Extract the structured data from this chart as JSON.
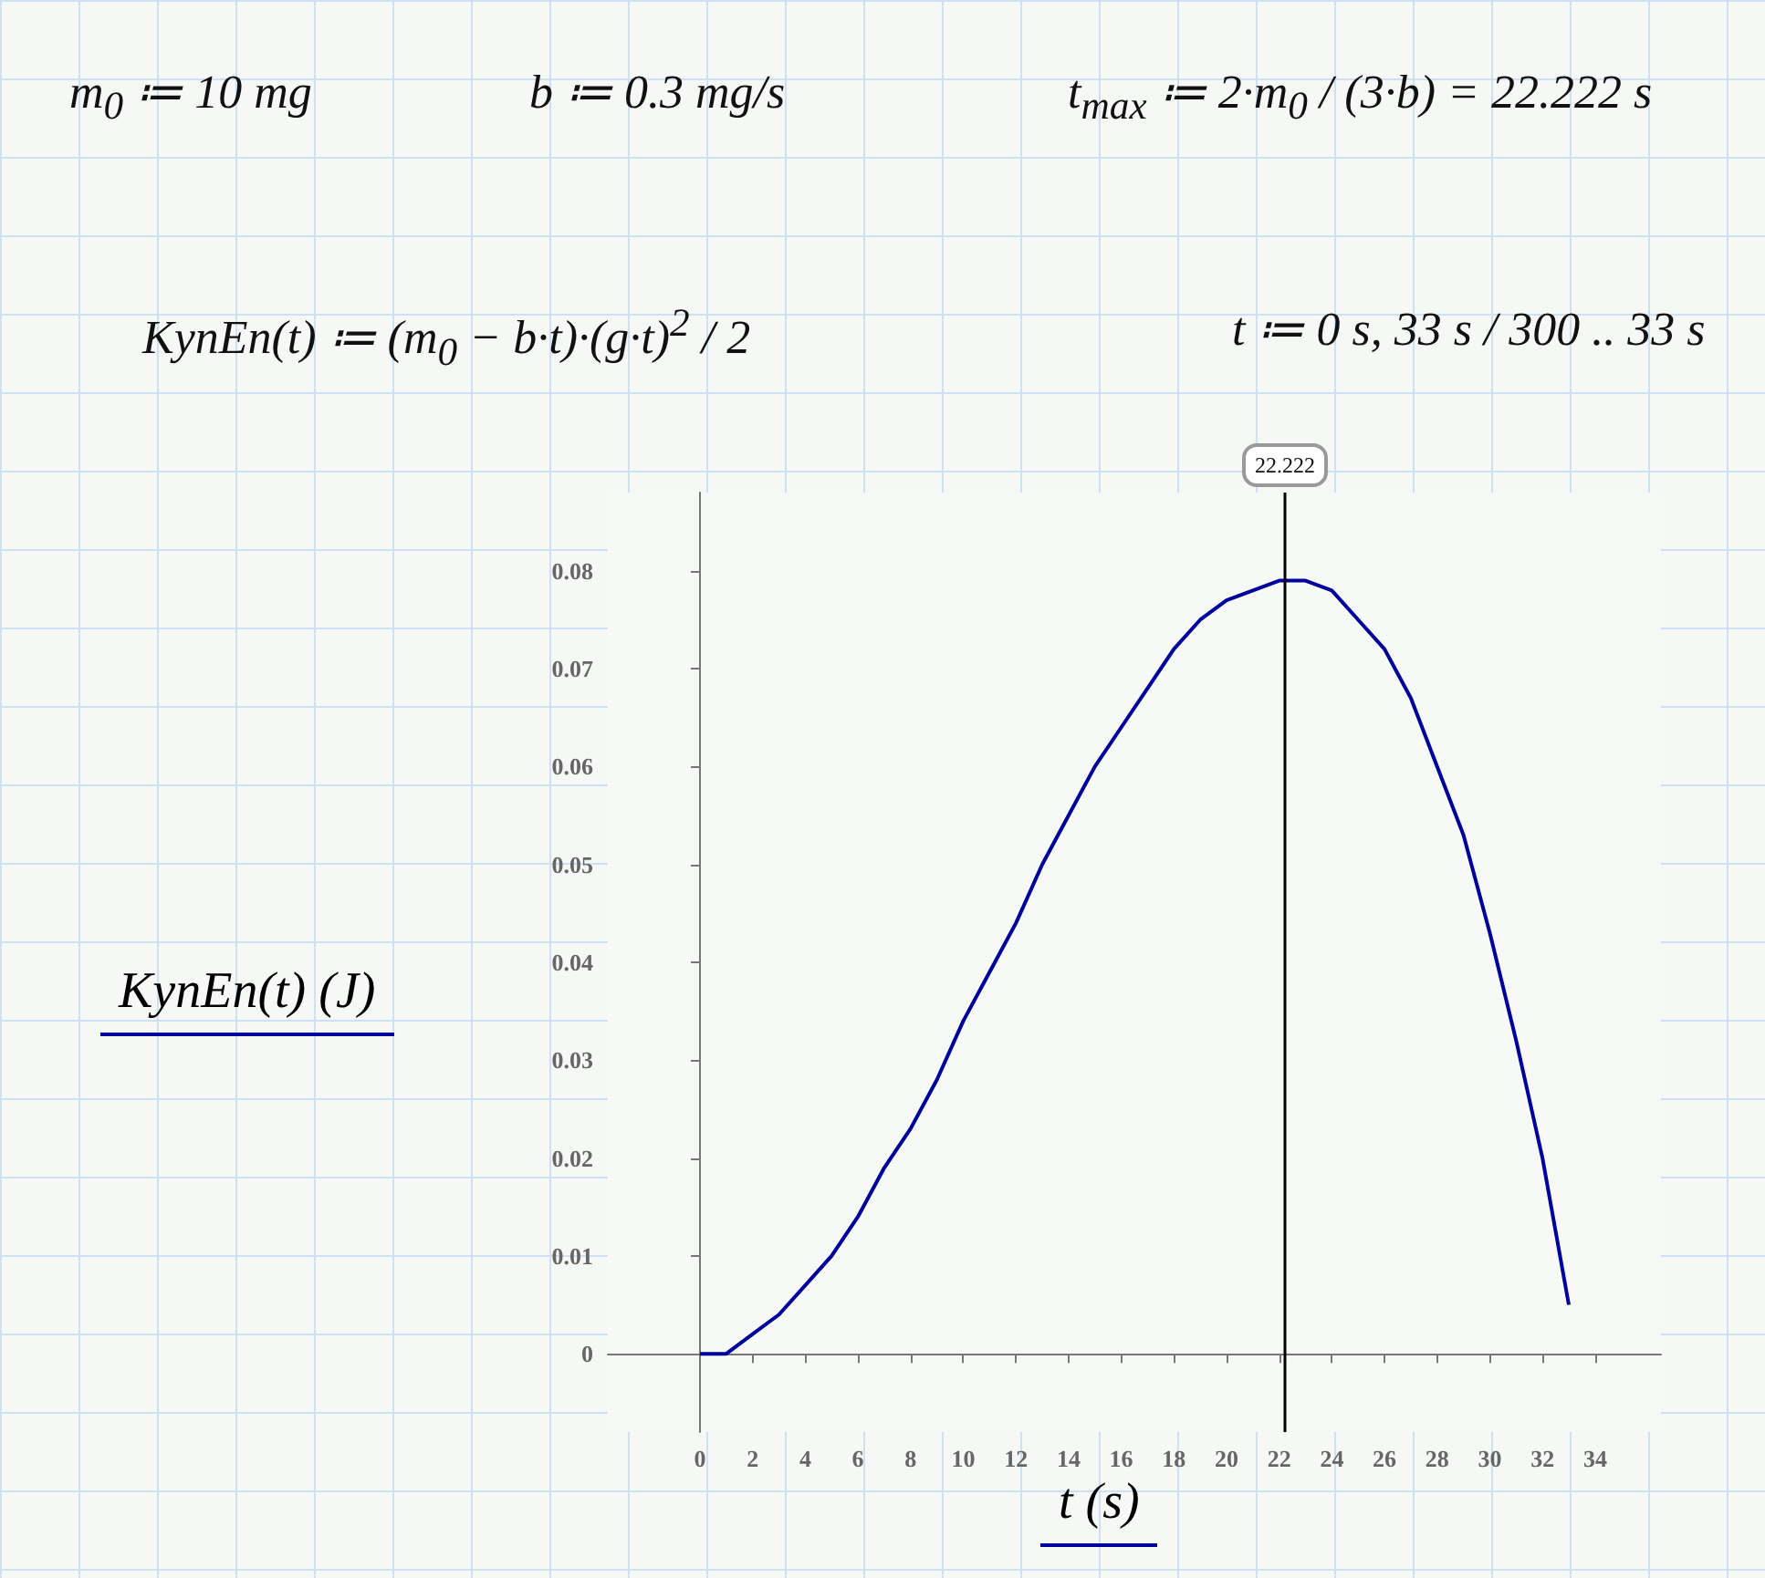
{
  "chart_data": {
    "type": "line",
    "xlabel": "t  (s)",
    "ylabel": "KynEn(t)  (J)",
    "annotations": [
      "m$_{0}$ ≔ 10 mg",
      "b ≔ 0.3 mg/s",
      "t$_{max}$ ≔ 2·m$_{0}$ / (3·b) = 22.222 s",
      "KynEn(t) ≔ (m$_{0}$ − b·t)·(g·t)$^{2}$ / 2",
      "t ≔ 0 s, 33 s / 300 .. 33 s"
    ],
    "x": [
      0,
      1,
      2,
      3,
      4,
      5,
      6,
      7,
      8,
      9,
      10,
      11,
      12,
      13,
      14,
      15,
      16,
      17,
      18,
      19,
      20,
      21,
      22,
      23,
      24,
      25,
      26,
      27,
      28,
      29,
      30,
      31,
      32,
      33
    ],
    "series": [
      {
        "color": "#00009c",
        "values": [
          0,
          0.0,
          0.002,
          0.004,
          0.007,
          0.01,
          0.014,
          0.019,
          0.023,
          0.028,
          0.034,
          0.039,
          0.044,
          0.05,
          0.055,
          0.06,
          0.064,
          0.068,
          0.072,
          0.075,
          0.077,
          0.078,
          0.079,
          0.079,
          0.078,
          0.075,
          0.072,
          0.067,
          0.06,
          0.053,
          0.043,
          0.032,
          0.02,
          0.005
        ]
      }
    ],
    "xlim": [
      -3.5,
      36.5
    ],
    "xticks": [
      0,
      2,
      4,
      6,
      8,
      10,
      12,
      14,
      16,
      18,
      20,
      22,
      24,
      26,
      28,
      30,
      32,
      34
    ],
    "ylim": [
      -0.008,
      0.088
    ],
    "yticks": [
      0,
      0.01,
      0.02,
      0.03,
      0.04,
      0.05,
      0.06,
      0.07,
      0.08
    ],
    "ref_lines": [
      {
        "axis": "x",
        "value": 22.222,
        "label": "22.222",
        "color": "#000000"
      }
    ],
    "marker": "none",
    "line_style": "solid"
  }
}
